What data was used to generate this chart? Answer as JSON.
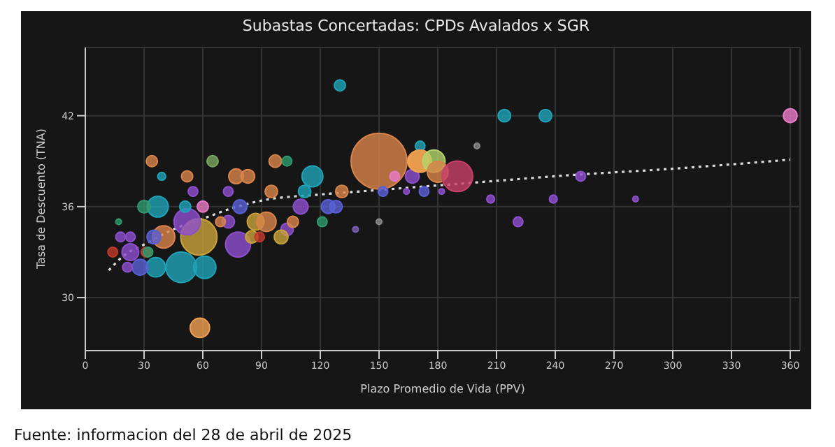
{
  "chart_data": {
    "type": "bubble",
    "title": "Subastas Concertadas: CPDs Avalados x SGR",
    "xlabel": "Plazo Promedio de Vida (PPV)",
    "ylabel": "Tasa de Descuento (TNA)",
    "annotations": [
      "Fuente: informacion del 28 de abril de 2025"
    ],
    "xlim": [
      0,
      365
    ],
    "xticks": [
      0,
      30,
      60,
      90,
      120,
      150,
      180,
      210,
      240,
      270,
      300,
      330,
      360
    ],
    "ylim": [
      26.5,
      46.5
    ],
    "yticks": [
      30,
      36,
      42
    ],
    "grid": true,
    "legend": false,
    "series": [
      {
        "x": [
          130,
          150,
          360,
          214,
          235,
          58.5,
          49,
          61,
          36,
          28,
          21.5,
          58,
          52,
          78,
          40,
          37,
          30,
          87,
          92.5,
          97,
          103,
          65,
          34,
          77,
          83,
          52,
          39,
          116,
          95,
          112,
          73,
          55,
          79,
          60,
          110,
          124,
          128,
          51,
          73,
          69,
          103,
          100,
          85,
          89,
          106,
          121,
          23,
          14,
          31,
          32,
          18,
          23,
          35,
          17,
          138,
          131,
          152,
          167,
          158,
          170,
          171,
          171,
          178,
          180,
          190,
          173,
          182,
          164,
          200,
          207,
          221,
          239,
          253,
          281,
          150
        ],
        "values": [
          44,
          39,
          42,
          42,
          42,
          28,
          32,
          32,
          32,
          32,
          32,
          34,
          35,
          33.5,
          34,
          36,
          36,
          35,
          35,
          39,
          39,
          39,
          39,
          38,
          38,
          38,
          38,
          38,
          37,
          37,
          37,
          37,
          36,
          36,
          36,
          36,
          36,
          36,
          35,
          35,
          34.5,
          34,
          34,
          34,
          35,
          35,
          33,
          33,
          33,
          33,
          34,
          34,
          34,
          35,
          34.5,
          37,
          37,
          38,
          38,
          39,
          40,
          39,
          39,
          38.3,
          38,
          37,
          37,
          37,
          40,
          36.5,
          35,
          36.5,
          38,
          36.5,
          35
        ],
        "sizes": [
          0.04,
          1,
          0.06,
          0.05,
          0.05,
          0.12,
          0.3,
          0.16,
          0.12,
          0.08,
          0.03,
          0.42,
          0.22,
          0.2,
          0.16,
          0.14,
          0.05,
          0.09,
          0.12,
          0.05,
          0.03,
          0.04,
          0.04,
          0.07,
          0.06,
          0.04,
          0.02,
          0.14,
          0.05,
          0.05,
          0.03,
          0.03,
          0.06,
          0.04,
          0.07,
          0.06,
          0.05,
          0.04,
          0.05,
          0.03,
          0.05,
          0.06,
          0.05,
          0.03,
          0.04,
          0.03,
          0.09,
          0.03,
          0.03,
          0.03,
          0.03,
          0.03,
          0.06,
          0.01,
          0.01,
          0.05,
          0.03,
          0.06,
          0.03,
          0.14,
          0.03,
          0.16,
          0.16,
          0.14,
          0.3,
          0.03,
          0.01,
          0.01,
          0.01,
          0.02,
          0.03,
          0.02,
          0.03,
          0.01,
          0.01
        ],
        "colors": [
          "#1fa3b8",
          "#d9844a",
          "#e879c8",
          "#1fa3b8",
          "#1fa3b8",
          "#f0a050",
          "#1fa3b8",
          "#1fa3b8",
          "#1fa3b8",
          "#5a5fd6",
          "#8e4fcf",
          "#c9a23a",
          "#8e4fcf",
          "#8e4fcf",
          "#d9844a",
          "#1fa3b8",
          "#2e9a6e",
          "#c9a23a",
          "#d9844a",
          "#d9844a",
          "#2e9a6e",
          "#7aa860",
          "#d9844a",
          "#d9844a",
          "#d9844a",
          "#d9844a",
          "#1fa3b8",
          "#1fa3b8",
          "#d9844a",
          "#1fa3b8",
          "#8e4fcf",
          "#8e4fcf",
          "#5a5fd6",
          "#e879c8",
          "#8e4fcf",
          "#5a5fd6",
          "#5a5fd6",
          "#1fa3b8",
          "#8e4fcf",
          "#d9844a",
          "#8e4fcf",
          "#c9a23a",
          "#c9a23a",
          "#c0392b",
          "#d9844a",
          "#2e9a6e",
          "#8e4fcf",
          "#c0392b",
          "#c0392b",
          "#2e9a6e",
          "#8e4fcf",
          "#8e4fcf",
          "#5a5fd6",
          "#2e9a6e",
          "#7a5fb0",
          "#d9844a",
          "#5a5fd6",
          "#8e4fcf",
          "#e879c8",
          "#f0a050",
          "#1fa3b8",
          "#f0a050",
          "#b5d46a",
          "#d9844a",
          "#c9406a",
          "#5a5fd6",
          "#8e4fcf",
          "#8e4fcf",
          "#888888",
          "#8e4fcf",
          "#8e4fcf",
          "#8e4fcf",
          "#8e4fcf",
          "#8e4fcf",
          "#888888"
        ]
      },
      {
        "type": "line",
        "color": "#dddddd",
        "line_style": "dotted",
        "x": [
          12,
          20,
          30,
          45,
          60,
          75,
          90,
          120,
          150,
          200,
          250,
          300,
          360
        ],
        "values": [
          31.8,
          32.8,
          33.5,
          34.5,
          35.2,
          35.9,
          36.4,
          36.8,
          37.1,
          37.6,
          38.1,
          38.5,
          39.1
        ]
      }
    ]
  }
}
